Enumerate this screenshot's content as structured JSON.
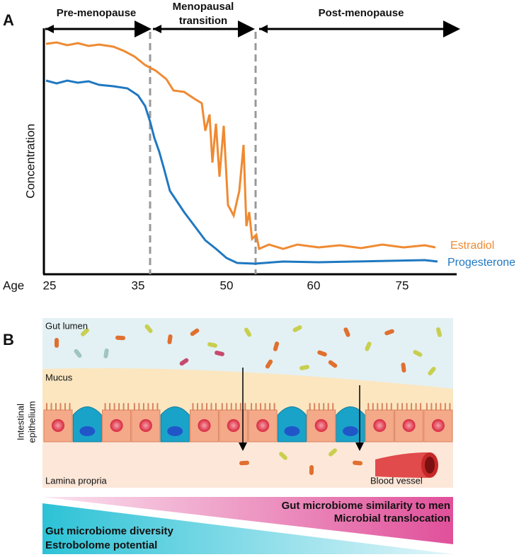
{
  "panel_a": {
    "label": "A",
    "phases": [
      {
        "lines": [
          "Pre-menopause"
        ]
      },
      {
        "lines": [
          "Menopausal",
          "transition"
        ]
      },
      {
        "lines": [
          "Post-menopause"
        ]
      }
    ],
    "y_label": "Concentration",
    "x_label": "Age",
    "age_ticks": [
      "25",
      "35",
      "50",
      "60",
      "75"
    ],
    "series": [
      {
        "name": "Estradiol",
        "color": "#ef8a32"
      },
      {
        "name": "Progesterone",
        "color": "#1f78c1"
      }
    ]
  },
  "panel_b": {
    "label": "B",
    "gut_lumen": "Gut lumen",
    "mucus": "Mucus",
    "epithelium": [
      "Intestinal",
      "epithelium"
    ],
    "lamina_propria": "Lamina propria",
    "blood_vessel": "Blood vessel",
    "gradient_top": [
      "Gut microbiome similarity to men",
      "Microbial translocation"
    ],
    "gradient_bottom": [
      "Gut microbiome diversity",
      "Estrobolome potential"
    ]
  }
}
